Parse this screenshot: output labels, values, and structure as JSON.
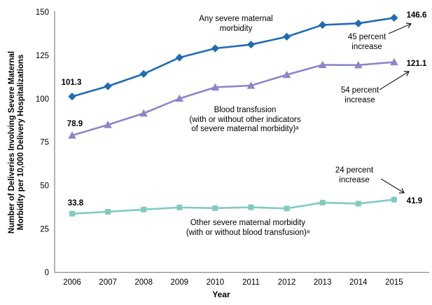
{
  "axes": {
    "y_title": "Number of Deliveries Involving Severe Maternal\nMorbidity per 10,000 Delivery Hospitalizations",
    "x_title": "Year",
    "y_ticks": [
      "0",
      "25",
      "50",
      "75",
      "100",
      "125",
      "150"
    ],
    "x_ticks": [
      "2006",
      "2007",
      "2008",
      "2009",
      "2010",
      "2011",
      "2012",
      "2013",
      "2014",
      "2015"
    ]
  },
  "chart_data": {
    "type": "line",
    "title": "",
    "xlabel": "Year",
    "ylabel": "Number of Deliveries Involving Severe Maternal Morbidity per 10,000 Delivery Hospitalizations",
    "x": [
      2006,
      2007,
      2008,
      2009,
      2010,
      2011,
      2012,
      2013,
      2014,
      2015
    ],
    "ylim": [
      0,
      150
    ],
    "yticks": [
      0,
      25,
      50,
      75,
      100,
      125,
      150
    ],
    "grid": false,
    "legend_position": "inline-annotations",
    "series": [
      {
        "name": "Any severe maternal morbidity",
        "marker": "diamond",
        "color": "#1f6cb4",
        "values": [
          101.3,
          107.2,
          114.3,
          123.7,
          129.0,
          131.2,
          135.7,
          142.5,
          143.4,
          146.6
        ],
        "start_label": "101.3",
        "end_label": "146.6",
        "percent_change_note": "45 percent increase"
      },
      {
        "name": "Blood transfusion (with or without other indicators of severe maternal morbidity)ᵃ",
        "marker": "triangle",
        "color": "#8a87c9",
        "values": [
          78.9,
          85.0,
          91.6,
          100.1,
          106.6,
          107.6,
          113.8,
          119.5,
          119.4,
          121.1
        ],
        "start_label": "78.9",
        "end_label": "121.1",
        "percent_change_note": "54 percent increase"
      },
      {
        "name": "Other severe maternal morbidity (with or without blood transfusion)ᵃ",
        "marker": "square",
        "color": "#7fccc1",
        "values": [
          33.8,
          34.9,
          36.2,
          37.4,
          37.0,
          37.5,
          36.8,
          40.2,
          39.6,
          41.9
        ],
        "start_label": "33.8",
        "end_label": "41.9",
        "percent_change_note": "24 percent increase"
      }
    ]
  },
  "annotations": {
    "any": {
      "line1": "Any severe maternal",
      "line2": "morbidity"
    },
    "blood": {
      "line1": "Blood transfusion",
      "line2": "(with or without other indicators",
      "line3": "of severe maternal morbidity)ᵃ"
    },
    "other": {
      "line1": "Other severe maternal morbidity",
      "line2": "(with or without blood transfusion)ᵃ"
    },
    "pct45": {
      "line1": "45 percent",
      "line2": "increase"
    },
    "pct54": {
      "line1": "54 percent",
      "line2": "increase"
    },
    "pct24": {
      "line1": "24 percent",
      "line2": "increase"
    }
  },
  "colors": {
    "axis": "#8c8c8c",
    "text": "#000000",
    "arrow": "#1a1a1a",
    "series_any": "#1f6cb4",
    "series_blood": "#8a87c9",
    "series_other": "#7fccc1"
  }
}
